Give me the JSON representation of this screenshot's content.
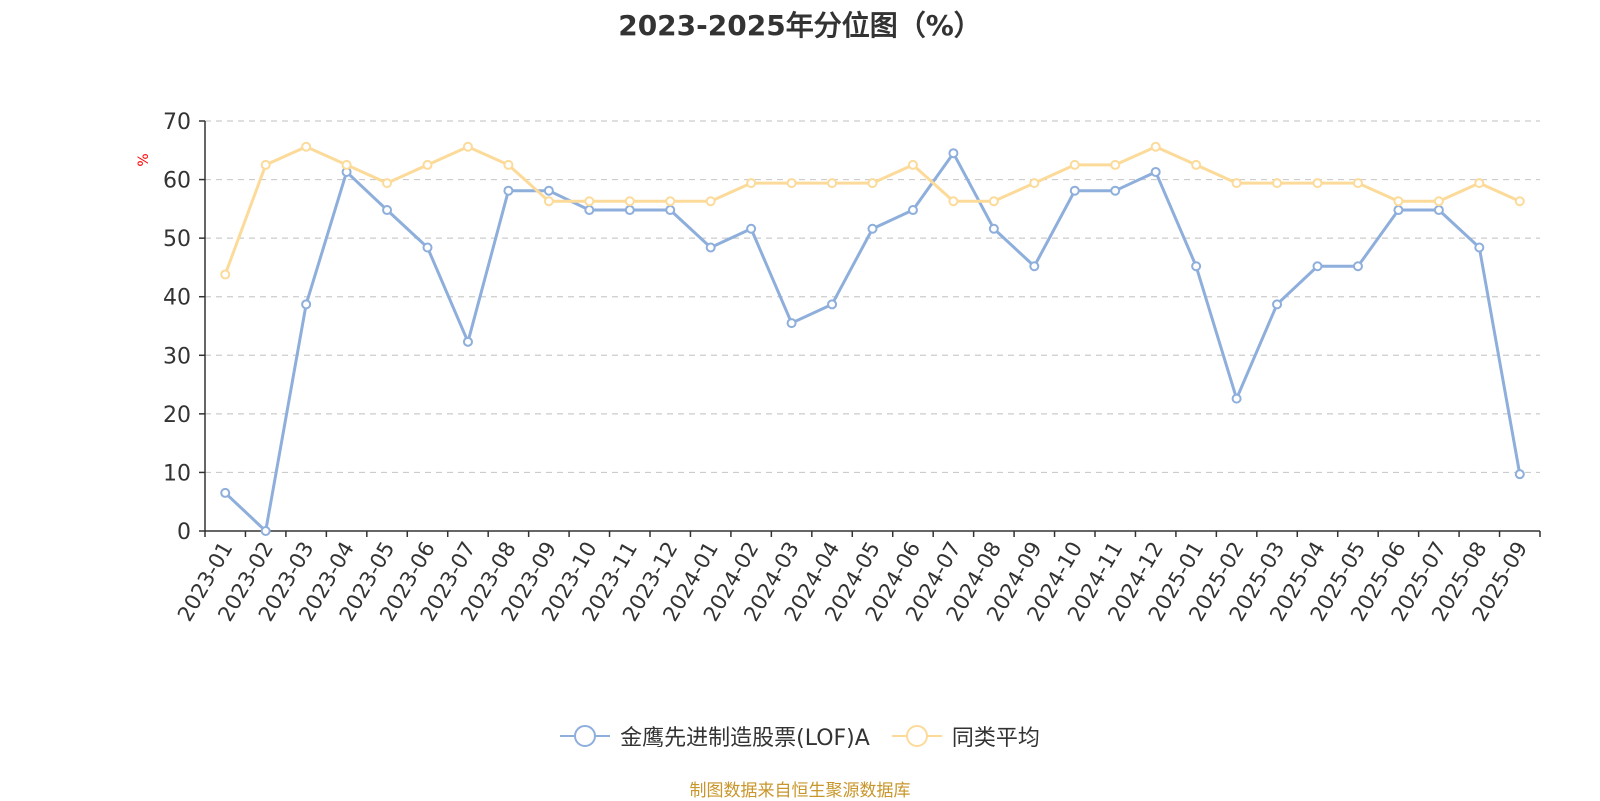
{
  "chart_data": {
    "type": "line",
    "title": "2023-2025年分位图（%）",
    "ylabel": "%",
    "ylim": [
      0,
      70
    ],
    "yticks": [
      0,
      10,
      20,
      30,
      40,
      50,
      60,
      70
    ],
    "grid": true,
    "legend_position": "bottom-center",
    "categories": [
      "2023-01",
      "2023-02",
      "2023-03",
      "2023-04",
      "2023-05",
      "2023-06",
      "2023-07",
      "2023-08",
      "2023-09",
      "2023-10",
      "2023-11",
      "2023-12",
      "2024-01",
      "2024-02",
      "2024-03",
      "2024-04",
      "2024-05",
      "2024-06",
      "2024-07",
      "2024-08",
      "2024-09",
      "2024-10",
      "2024-11",
      "2024-12",
      "2025-01",
      "2025-02",
      "2025-03",
      "2025-04",
      "2025-05",
      "2025-06",
      "2025-07",
      "2025-08",
      "2025-09"
    ],
    "series": [
      {
        "name": "金鹰先进制造股票(LOF)A",
        "color": "#8eaedc",
        "values": [
          6.5,
          0,
          38.7,
          61.3,
          54.8,
          48.4,
          32.3,
          58.1,
          58.1,
          54.8,
          54.8,
          54.8,
          48.4,
          51.6,
          35.5,
          38.7,
          51.6,
          54.8,
          64.5,
          51.6,
          45.2,
          58.1,
          58.1,
          61.3,
          45.2,
          22.6,
          38.7,
          45.2,
          45.2,
          54.8,
          54.8,
          48.4,
          9.7
        ]
      },
      {
        "name": "同类平均",
        "color": "#fcdb9a",
        "values": [
          43.8,
          62.5,
          65.6,
          62.5,
          59.4,
          62.5,
          65.6,
          62.5,
          56.3,
          56.3,
          56.3,
          56.3,
          56.3,
          59.4,
          59.4,
          59.4,
          59.4,
          62.5,
          56.3,
          56.3,
          59.4,
          62.5,
          62.5,
          65.6,
          62.5,
          59.4,
          59.4,
          59.4,
          59.4,
          56.3,
          56.3,
          59.4,
          56.3
        ]
      }
    ],
    "source_note": "制图数据来自恒生聚源数据库"
  }
}
